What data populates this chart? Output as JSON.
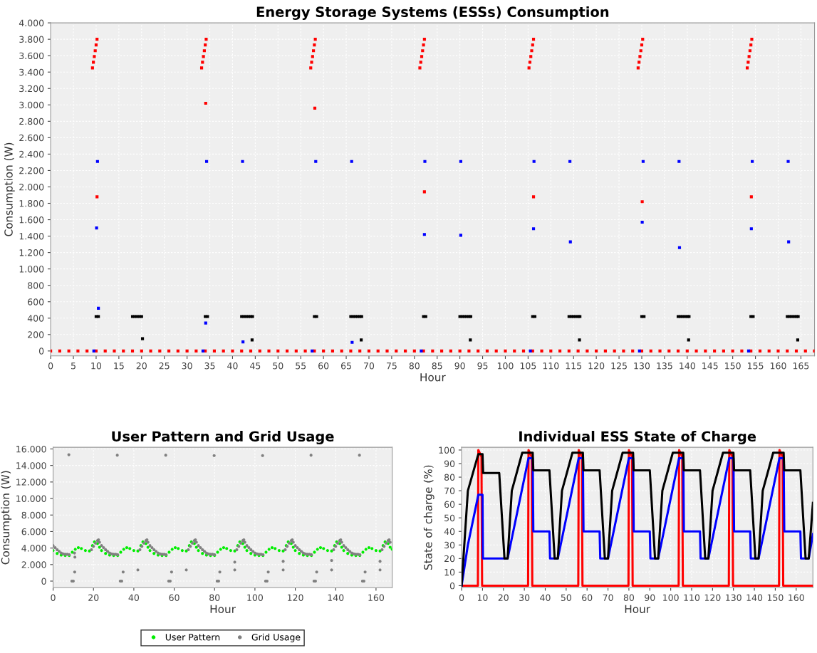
{
  "chart_data": [
    {
      "type": "scatter",
      "title": "Energy Storage Systems (ESSs) Consumption",
      "xlabel": "Hour",
      "ylabel": "Consumption (W)",
      "marker": "square",
      "grid": true,
      "xlim": [
        0,
        168
      ],
      "xticks": [
        0,
        5,
        10,
        15,
        20,
        25,
        30,
        35,
        40,
        45,
        50,
        55,
        60,
        65,
        70,
        75,
        80,
        85,
        90,
        95,
        100,
        105,
        110,
        115,
        120,
        125,
        130,
        135,
        140,
        145,
        150,
        155,
        160,
        165
      ],
      "ylim": [
        -60,
        4000
      ],
      "yticks": [
        0,
        200,
        400,
        600,
        800,
        {
          "value": 1000,
          "label": "1.000"
        },
        {
          "value": 1200,
          "label": "1.200"
        },
        {
          "value": 1400,
          "label": "1.400"
        },
        {
          "value": 1600,
          "label": "1.600"
        },
        {
          "value": 1800,
          "label": "1.800"
        },
        {
          "value": 2000,
          "label": "2.000"
        },
        {
          "value": 2200,
          "label": "2.200"
        },
        {
          "value": 2400,
          "label": "2.400"
        },
        {
          "value": 2600,
          "label": "2.600"
        },
        {
          "value": 2800,
          "label": "2.800"
        },
        {
          "value": 3000,
          "label": "3.000"
        },
        {
          "value": 3200,
          "label": "3.200"
        },
        {
          "value": 3400,
          "label": "3.400"
        },
        {
          "value": 3600,
          "label": "3.600"
        },
        {
          "value": 3800,
          "label": "3.800"
        },
        {
          "value": 4000,
          "label": "4.000"
        }
      ],
      "series": [
        {
          "color": "#ff0000",
          "x": [
            0,
            2,
            4,
            6,
            8,
            10,
            12,
            14,
            16,
            18,
            20,
            22,
            24,
            26,
            28,
            30,
            32,
            34,
            36,
            38,
            40,
            42,
            44,
            46,
            48,
            50,
            52,
            54,
            56,
            58,
            60,
            62,
            64,
            66,
            68,
            70,
            72,
            74,
            76,
            78,
            80,
            82,
            84,
            86,
            88,
            90,
            92,
            94,
            96,
            98,
            100,
            102,
            104,
            106,
            108,
            110,
            112,
            114,
            116,
            118,
            120,
            122,
            124,
            126,
            128,
            130,
            132,
            134,
            136,
            138,
            140,
            142,
            144,
            146,
            148,
            150,
            152,
            154,
            156,
            158,
            160,
            162,
            164,
            166,
            168,
            9.2,
            9.4,
            9.6,
            9.8,
            10.0,
            10.2,
            33.2,
            33.4,
            33.6,
            33.8,
            34.0,
            34.2,
            57.2,
            57.4,
            57.6,
            57.8,
            58.0,
            58.2,
            81.2,
            81.4,
            81.6,
            81.8,
            82.0,
            82.2,
            105.2,
            105.4,
            105.6,
            105.8,
            106.0,
            106.2,
            129.2,
            129.4,
            129.6,
            129.8,
            130.0,
            130.2,
            153.2,
            153.4,
            153.6,
            153.8,
            154.0,
            154.2,
            10.2,
            34.1,
            58.1,
            82.2,
            106.2,
            130.1,
            154.1
          ],
          "values": [
            0,
            0,
            0,
            0,
            0,
            0,
            0,
            0,
            0,
            0,
            0,
            0,
            0,
            0,
            0,
            0,
            0,
            0,
            0,
            0,
            0,
            0,
            0,
            0,
            0,
            0,
            0,
            0,
            0,
            0,
            0,
            0,
            0,
            0,
            0,
            0,
            0,
            0,
            0,
            0,
            0,
            0,
            0,
            0,
            0,
            0,
            0,
            0,
            0,
            0,
            0,
            0,
            0,
            0,
            0,
            0,
            0,
            0,
            0,
            0,
            0,
            0,
            0,
            0,
            0,
            0,
            0,
            0,
            0,
            0,
            0,
            0,
            0,
            0,
            0,
            0,
            0,
            0,
            0,
            0,
            0,
            0,
            0,
            0,
            0,
            3450,
            3520,
            3590,
            3660,
            3730,
            3800,
            3450,
            3520,
            3590,
            3660,
            3730,
            3800,
            3450,
            3520,
            3590,
            3660,
            3730,
            3800,
            3450,
            3520,
            3590,
            3660,
            3730,
            3800,
            3450,
            3520,
            3590,
            3660,
            3730,
            3800,
            3450,
            3520,
            3590,
            3660,
            3730,
            3800,
            3450,
            3520,
            3590,
            3660,
            3730,
            3800,
            1880,
            3020,
            2960,
            1940,
            1880,
            1820,
            1880
          ]
        },
        {
          "color": "#0000ff",
          "x": [
            10.3,
            34.3,
            42.2,
            58.3,
            66.2,
            82.3,
            90.2,
            106.3,
            114.2,
            130.3,
            138.2,
            154.3,
            162.2,
            10.1,
            10.5,
            34.1,
            42.3,
            66.3,
            82.2,
            90.2,
            106.2,
            114.3,
            130.1,
            138.3,
            154.1,
            162.3,
            9.5,
            33.5,
            57.5,
            81.5,
            105.5,
            129.5,
            153.5
          ],
          "values": [
            2310,
            2310,
            2310,
            2310,
            2310,
            2310,
            2310,
            2310,
            2310,
            2310,
            2310,
            2310,
            2310,
            1500,
            520,
            340,
            110,
            105,
            1420,
            1410,
            1490,
            1330,
            1570,
            1260,
            1490,
            1330,
            0,
            0,
            0,
            0,
            0,
            0,
            0
          ]
        },
        {
          "color": "#000000",
          "x": [
            10,
            10.5,
            18,
            18.5,
            19,
            19.5,
            20,
            34,
            34.5,
            42,
            42.5,
            43,
            43.5,
            44,
            44.4,
            58,
            58.5,
            66,
            66.5,
            67,
            67.5,
            68,
            68.4,
            82,
            82.5,
            90,
            90.5,
            91,
            91.5,
            92,
            92.4,
            106,
            106.5,
            114,
            114.5,
            115,
            115.5,
            116,
            116.4,
            130,
            130.5,
            138,
            138.5,
            139,
            139.5,
            140,
            140.4,
            154,
            154.5,
            162,
            162.5,
            163,
            163.5,
            164,
            164.4,
            20.2,
            44.3,
            68.3,
            92.3,
            116.3,
            140.3,
            164.3
          ],
          "values": [
            420,
            420,
            420,
            420,
            420,
            420,
            420,
            420,
            420,
            420,
            420,
            420,
            420,
            420,
            420,
            420,
            420,
            420,
            420,
            420,
            420,
            420,
            420,
            420,
            420,
            420,
            420,
            420,
            420,
            420,
            420,
            420,
            420,
            420,
            420,
            420,
            420,
            420,
            420,
            420,
            420,
            420,
            420,
            420,
            420,
            420,
            420,
            420,
            420,
            420,
            420,
            420,
            420,
            420,
            420,
            150,
            135,
            135,
            135,
            135,
            135,
            135
          ]
        }
      ]
    },
    {
      "type": "scatter",
      "title": "User Pattern and Grid Usage",
      "xlabel": "Hour",
      "ylabel": "Consumption (W)",
      "marker": "circle",
      "grid": true,
      "legend": "bottom",
      "xlim": [
        0,
        168
      ],
      "xticks": [
        0,
        20,
        40,
        60,
        80,
        100,
        120,
        140,
        160
      ],
      "ylim": [
        -800,
        16200
      ],
      "yticks": [
        0,
        {
          "value": 2000,
          "label": "2.000"
        },
        {
          "value": 4000,
          "label": "4.000"
        },
        {
          "value": 6000,
          "label": "6.000"
        },
        {
          "value": 8000,
          "label": "8.000"
        },
        {
          "value": 10000,
          "label": "10.000"
        },
        {
          "value": 12000,
          "label": "12.000"
        },
        {
          "value": 14000,
          "label": "14.000"
        },
        {
          "value": 16000,
          "label": "16.000"
        }
      ],
      "series": [
        {
          "name": "User Pattern",
          "color": "#00ee00",
          "x": [
            0,
            2,
            4,
            6,
            8,
            9.5,
            11,
            12.5,
            14,
            16,
            18,
            19.5,
            20.5,
            22,
            23,
            24,
            26,
            28,
            30,
            32,
            33.5,
            35,
            36.5,
            38,
            40,
            42,
            43.5,
            44.5,
            46,
            47,
            48,
            50,
            52,
            54,
            56,
            57.5,
            59,
            60.5,
            62,
            64,
            66,
            67.5,
            68.5,
            70,
            71,
            72,
            74,
            76,
            78,
            80,
            81.5,
            83,
            84.5,
            86,
            88,
            90,
            91.5,
            92.5,
            94,
            95,
            96,
            98,
            100,
            102,
            104,
            105.5,
            107,
            108.5,
            110,
            112,
            114,
            115.5,
            116.5,
            118,
            119,
            120,
            122,
            124,
            126,
            128,
            129.5,
            131,
            132.5,
            134,
            136,
            138,
            139.5,
            140.5,
            142,
            143,
            144,
            146,
            148,
            150,
            152,
            153.5,
            155,
            156.5,
            158,
            160,
            162,
            163.5,
            164.5,
            166,
            167,
            168
          ],
          "values": [
            3700,
            3350,
            3150,
            3100,
            3100,
            3500,
            3850,
            4050,
            3950,
            3700,
            3650,
            4300,
            4750,
            4550,
            4100,
            3700,
            3350,
            3150,
            3100,
            3100,
            3500,
            3850,
            4050,
            3950,
            3700,
            3650,
            4300,
            4750,
            4550,
            4100,
            3700,
            3350,
            3150,
            3100,
            3100,
            3500,
            3850,
            4050,
            3950,
            3700,
            3650,
            4300,
            4750,
            4550,
            4100,
            3700,
            3350,
            3150,
            3100,
            3100,
            3500,
            3850,
            4050,
            3950,
            3700,
            3650,
            4300,
            4750,
            4550,
            4100,
            3700,
            3350,
            3150,
            3100,
            3100,
            3500,
            3850,
            4050,
            3950,
            3700,
            3650,
            4300,
            4750,
            4550,
            4100,
            3700,
            3350,
            3150,
            3100,
            3100,
            3500,
            3850,
            4050,
            3950,
            3700,
            3650,
            4300,
            4750,
            4550,
            4100,
            3700,
            3350,
            3150,
            3100,
            3100,
            3500,
            3850,
            4050,
            3950,
            3700,
            3650,
            4300,
            4750,
            4550,
            4100,
            3850
          ]
        },
        {
          "name": "Grid Usage",
          "color": "#808080",
          "x": [
            0,
            1,
            2,
            3,
            4,
            5,
            6,
            7,
            8,
            19,
            20,
            21,
            22,
            22.5,
            23,
            24,
            25,
            26,
            27,
            28,
            29,
            30,
            31,
            32,
            43,
            44,
            45,
            46,
            46.5,
            47,
            48,
            49,
            50,
            51,
            52,
            53,
            54,
            55,
            56,
            67,
            68,
            69,
            70,
            70.5,
            71,
            72,
            73,
            74,
            75,
            76,
            77,
            78,
            79,
            80,
            91,
            92,
            93,
            94,
            94.5,
            95,
            96,
            97,
            98,
            99,
            100,
            101,
            102,
            103,
            104,
            115,
            116,
            117,
            118,
            118.5,
            119,
            120,
            121,
            122,
            123,
            124,
            125,
            126,
            127,
            128,
            139,
            140,
            141,
            142,
            142.5,
            143,
            144,
            145,
            146,
            147,
            148,
            149,
            150,
            151,
            152,
            163,
            164,
            165,
            166,
            166.5,
            167,
            7.8,
            31.8,
            55.8,
            79.8,
            103.8,
            127.8,
            151.8,
            9.3,
            10,
            33.3,
            34,
            57.3,
            58,
            81.3,
            82,
            105.3,
            106,
            129.3,
            130,
            153.3,
            154,
            10.7,
            34.7,
            58.7,
            82.6,
            106.6,
            130.6,
            154.6,
            42,
            66,
            90,
            114,
            138,
            162,
            10.8,
            10.6,
            90,
            114,
            138,
            162
          ],
          "values": [
            4300,
            4050,
            3800,
            3600,
            3400,
            3300,
            3250,
            3250,
            3200,
            3800,
            4200,
            4600,
            4900,
            5000,
            4700,
            4300,
            4050,
            3800,
            3600,
            3400,
            3300,
            3250,
            3250,
            3200,
            3800,
            4200,
            4600,
            4900,
            5000,
            4700,
            4300,
            4050,
            3800,
            3600,
            3400,
            3300,
            3250,
            3250,
            3200,
            3800,
            4200,
            4600,
            4900,
            5000,
            4700,
            4300,
            4050,
            3800,
            3600,
            3400,
            3300,
            3250,
            3250,
            3200,
            3800,
            4200,
            4600,
            4900,
            5000,
            4700,
            4300,
            4050,
            3800,
            3600,
            3400,
            3300,
            3250,
            3250,
            3200,
            3800,
            4200,
            4600,
            4900,
            5000,
            4700,
            4300,
            4050,
            3800,
            3600,
            3400,
            3300,
            3250,
            3250,
            3200,
            3800,
            4200,
            4600,
            4900,
            5000,
            4700,
            4300,
            4050,
            3800,
            3600,
            3400,
            3300,
            3250,
            3250,
            3200,
            3800,
            4200,
            4600,
            4900,
            5000,
            4700,
            15300,
            15250,
            15250,
            15200,
            15200,
            15250,
            15250,
            0,
            0,
            0,
            0,
            0,
            0,
            0,
            0,
            0,
            0,
            0,
            0,
            0,
            0,
            1100,
            1100,
            1100,
            1100,
            1100,
            1100,
            1100,
            1350,
            1350,
            1350,
            1350,
            1350,
            1350,
            2900,
            3400,
            2300,
            2400,
            2500,
            2400
          ]
        }
      ]
    },
    {
      "type": "line",
      "title": "Individual ESS State of Charge",
      "xlabel": "Hour",
      "ylabel": "State of charge (%)",
      "grid": true,
      "xlim": [
        0,
        168
      ],
      "xticks": [
        0,
        10,
        20,
        30,
        40,
        50,
        60,
        70,
        80,
        90,
        100,
        110,
        120,
        130,
        140,
        150,
        160
      ],
      "ylim": [
        -1.5,
        102
      ],
      "yticks": [
        0,
        10,
        20,
        30,
        40,
        50,
        60,
        70,
        80,
        90,
        100
      ],
      "series": [
        {
          "color": "#ff0000",
          "x": [
            0,
            7.8,
            8,
            9.5,
            9.8,
            31.8,
            32,
            33.5,
            33.8,
            55.8,
            56,
            57.5,
            57.8,
            79.8,
            80,
            81.5,
            81.8,
            103.8,
            104,
            105.5,
            105.8,
            127.8,
            128,
            129.5,
            129.8,
            151.8,
            152,
            153.5,
            153.8,
            168
          ],
          "values": [
            0,
            0,
            100,
            95,
            0,
            0,
            100,
            95,
            0,
            0,
            100,
            95,
            0,
            0,
            100,
            95,
            0,
            0,
            100,
            95,
            0,
            0,
            100,
            95,
            0,
            0,
            100,
            95,
            0,
            0
          ]
        },
        {
          "color": "#0000ff",
          "x": [
            0,
            3,
            8,
            10,
            10.2,
            22,
            32,
            34,
            34.3,
            42,
            42.3,
            46,
            56,
            58,
            58.3,
            66,
            66.3,
            70,
            80,
            82,
            82.3,
            90,
            90.3,
            94,
            104,
            106,
            106.3,
            114,
            114.3,
            118,
            128,
            130,
            130.3,
            138,
            138.3,
            142,
            152,
            154,
            154.3,
            162,
            162.3,
            166,
            168
          ],
          "values": [
            0,
            30,
            67,
            67,
            20,
            20,
            94,
            94,
            40,
            40,
            20,
            20,
            94,
            94,
            40,
            40,
            20,
            20,
            94,
            94,
            40,
            40,
            20,
            20,
            94,
            94,
            40,
            40,
            20,
            20,
            94,
            94,
            40,
            40,
            20,
            20,
            94,
            94,
            40,
            40,
            20,
            20,
            38
          ]
        },
        {
          "color": "#000000",
          "x": [
            0,
            3,
            8,
            10,
            10.3,
            18,
            20.5,
            22,
            24,
            29,
            34,
            34.3,
            42,
            44.5,
            46,
            48,
            53,
            58,
            58.3,
            66,
            68.5,
            70,
            72,
            77,
            82,
            82.3,
            90,
            92.5,
            94,
            96,
            101,
            106,
            106.3,
            114,
            116.5,
            118,
            120,
            125,
            130,
            130.3,
            138,
            140.5,
            142,
            144,
            149,
            154,
            154.3,
            162,
            164.5,
            166,
            168
          ],
          "values": [
            0,
            70,
            97,
            97,
            83,
            83,
            20,
            20,
            70,
            98,
            98,
            85,
            85,
            20,
            20,
            70,
            98,
            98,
            85,
            85,
            20,
            20,
            70,
            98,
            98,
            85,
            85,
            20,
            20,
            70,
            98,
            98,
            85,
            85,
            20,
            20,
            70,
            98,
            98,
            85,
            85,
            20,
            20,
            70,
            98,
            98,
            85,
            85,
            20,
            20,
            61
          ]
        }
      ]
    }
  ]
}
